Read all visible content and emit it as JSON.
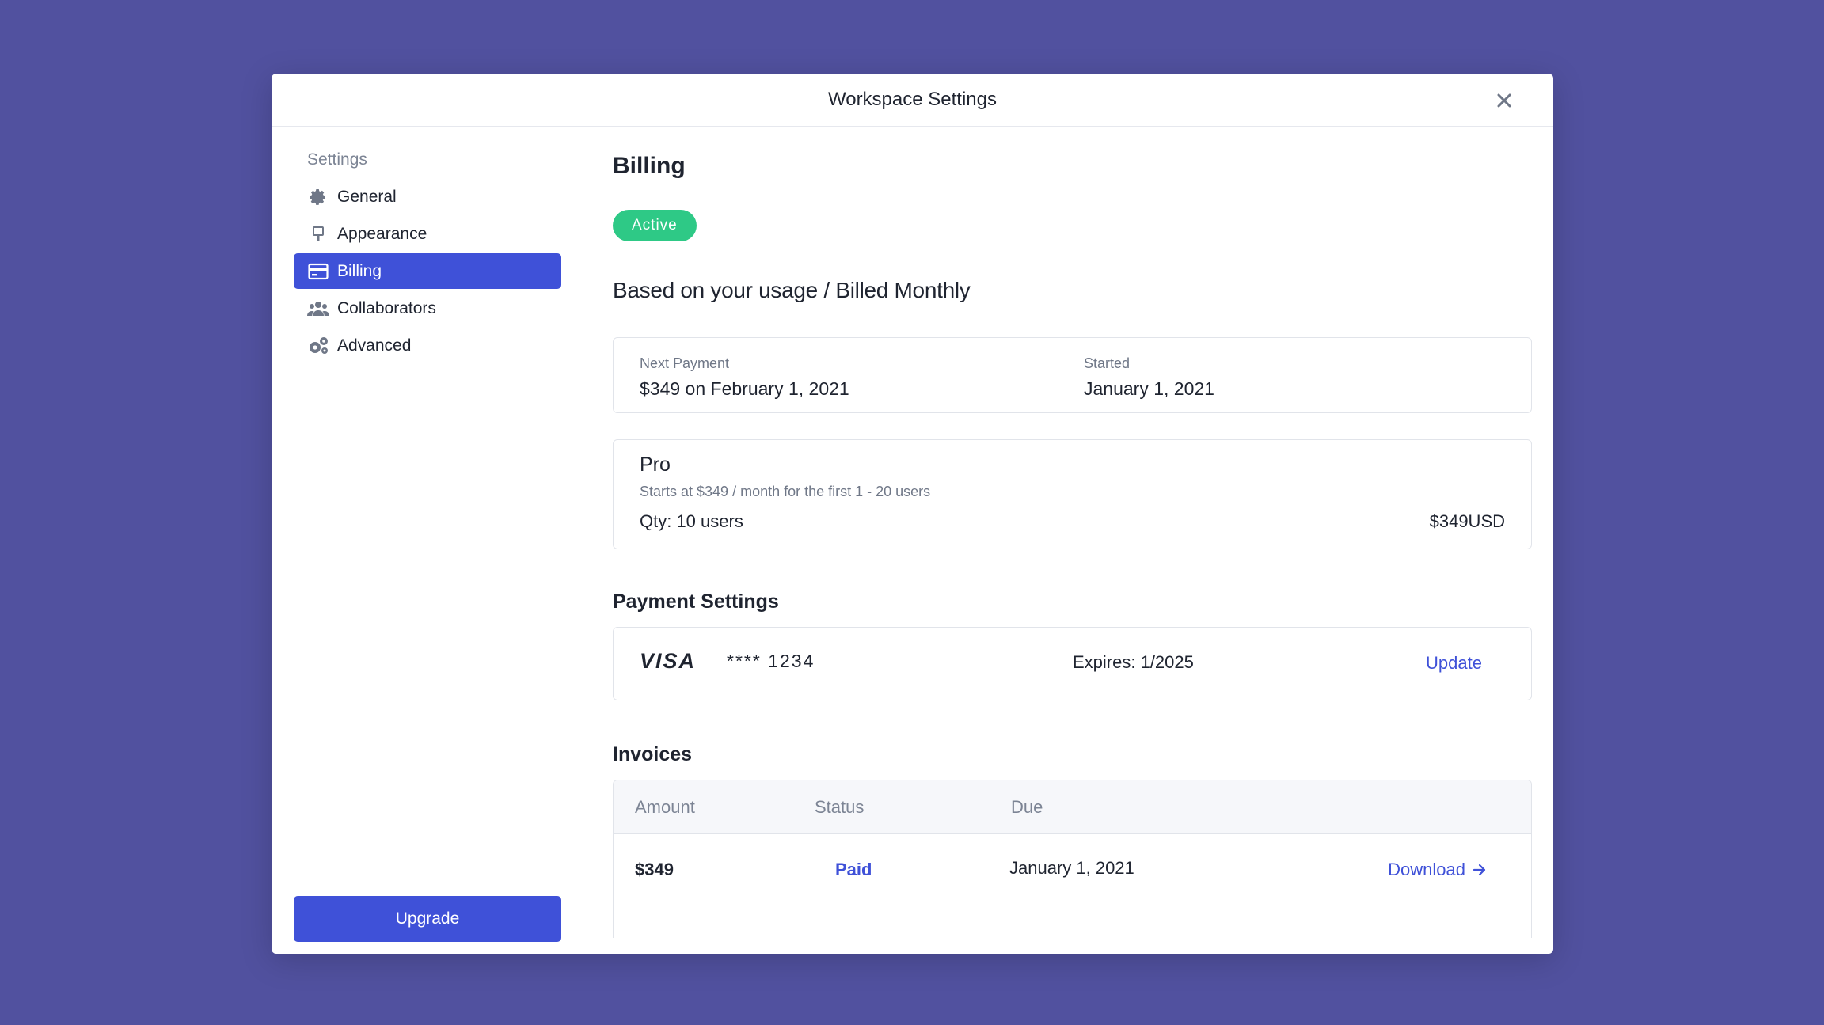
{
  "modal": {
    "title": "Workspace Settings"
  },
  "sidebar": {
    "heading": "Settings",
    "items": [
      {
        "label": "General",
        "icon": "gear-icon"
      },
      {
        "label": "Appearance",
        "icon": "brush-icon"
      },
      {
        "label": "Billing",
        "icon": "credit-card-icon",
        "active": true
      },
      {
        "label": "Collaborators",
        "icon": "users-icon"
      },
      {
        "label": "Advanced",
        "icon": "gears-icon"
      }
    ],
    "upgrade_label": "Upgrade"
  },
  "billing": {
    "title": "Billing",
    "status": "Active",
    "summary": "Based on your usage / Billed Monthly",
    "next_payment": {
      "label": "Next Payment",
      "amount": "$349 on",
      "date": "February 1, 2021"
    },
    "started": {
      "label": "Started",
      "date": "January 1, 2021"
    },
    "plan": {
      "name": "Pro",
      "description": "Starts at $349 / month for the first 1 - 20 users",
      "qty": "Qty: 10 users",
      "price": "$349USD"
    }
  },
  "payment": {
    "title": "Payment Settings",
    "brand": "VISA",
    "number": "**** 1234",
    "expiry": "Expires: 1/2025",
    "update_label": "Update"
  },
  "invoices": {
    "title": "Invoices",
    "columns": [
      "Amount",
      "Status",
      "Due"
    ],
    "rows": [
      {
        "amount": "$349",
        "status": "Paid",
        "due": "January 1, 2021",
        "action": "Download"
      }
    ]
  },
  "colors": {
    "background": "#51519f",
    "accent": "#3f51d8",
    "success": "#2ec986"
  }
}
